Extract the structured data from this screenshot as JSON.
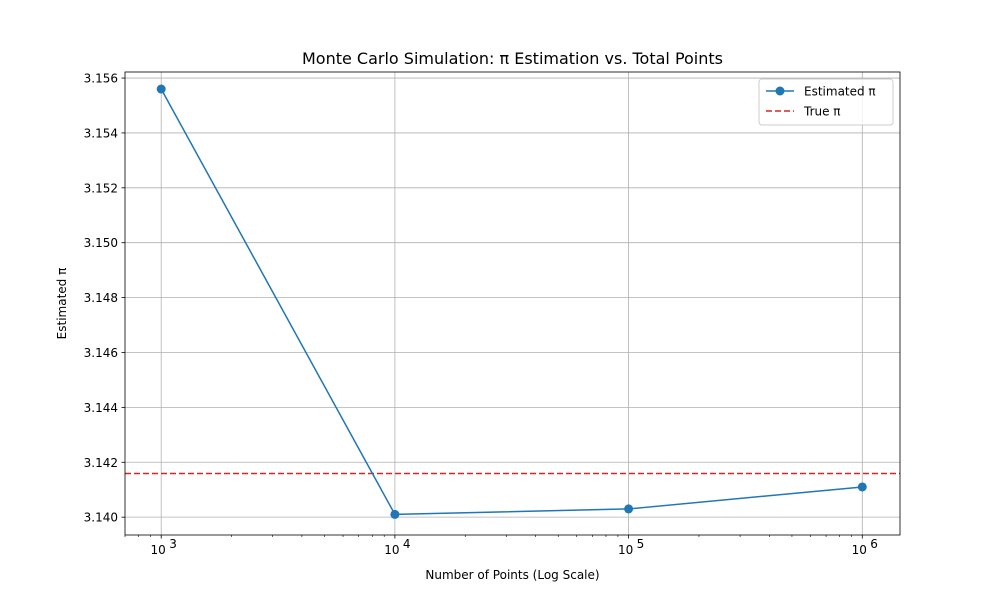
{
  "chart_data": {
    "type": "line",
    "title": "Monte Carlo Simulation: π Estimation vs. Total Points",
    "xlabel": "Number of Points (Log Scale)",
    "ylabel": "Estimated π",
    "x_scale": "log",
    "x": [
      1000,
      10000,
      100000,
      1000000
    ],
    "xlim": [
      700,
      1450000
    ],
    "ylim": [
      3.13935,
      3.15622
    ],
    "x_ticks": [
      1000,
      10000,
      100000,
      1000000
    ],
    "x_tick_labels": [
      {
        "base": "10",
        "exp": "3"
      },
      {
        "base": "10",
        "exp": "4"
      },
      {
        "base": "10",
        "exp": "5"
      },
      {
        "base": "10",
        "exp": "6"
      }
    ],
    "y_ticks": [
      3.14,
      3.142,
      3.144,
      3.146,
      3.148,
      3.15,
      3.152,
      3.154,
      3.156
    ],
    "y_tick_labels": [
      "3.140",
      "3.142",
      "3.144",
      "3.146",
      "3.148",
      "3.150",
      "3.152",
      "3.154",
      "3.156"
    ],
    "grid": true,
    "legend_position": "top-right",
    "series": [
      {
        "name": "Estimated π",
        "style": "solid-with-markers",
        "color": "#1f77b4",
        "values": [
          3.1556,
          3.1401,
          3.1403,
          3.1411
        ]
      }
    ],
    "reference_lines": [
      {
        "name": "True π",
        "style": "dashed",
        "color": "#d62728",
        "y": 3.14159
      }
    ]
  }
}
